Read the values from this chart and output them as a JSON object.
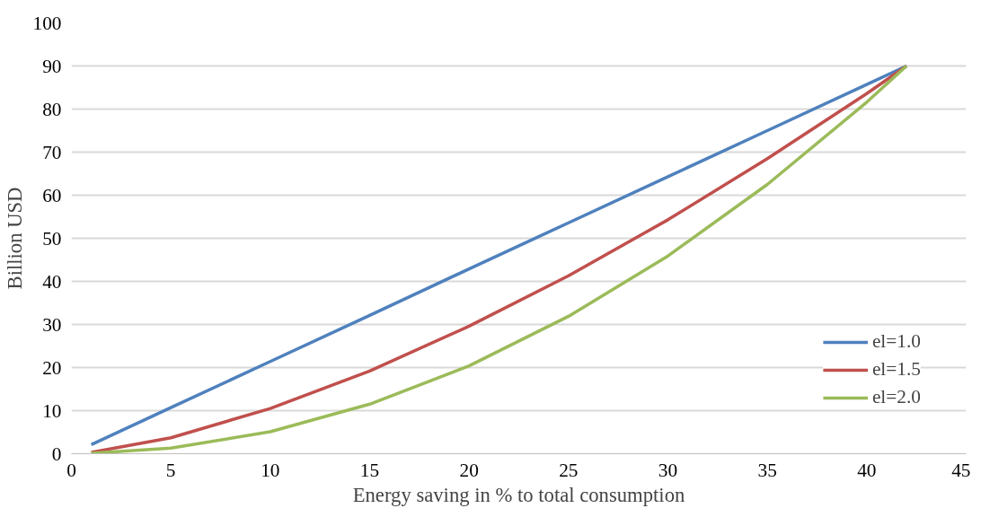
{
  "chart_data": {
    "type": "line",
    "xlabel": "Energy saving in % to total consumption",
    "ylabel": "Billion USD",
    "x": [
      1,
      5,
      10,
      15,
      20,
      25,
      30,
      35,
      40,
      42
    ],
    "series": [
      {
        "name": "el=1.0",
        "color": "#4f81bd",
        "values": [
          2.1,
          10.7,
          21.4,
          32.1,
          42.9,
          53.6,
          64.3,
          75.0,
          85.7,
          90
        ]
      },
      {
        "name": "el=1.5",
        "color": "#c0504d",
        "values": [
          0.3,
          3.7,
          10.5,
          19.2,
          29.6,
          41.3,
          54.3,
          68.5,
          83.6,
          90
        ]
      },
      {
        "name": "el=2.0",
        "color": "#9bbb59",
        "values": [
          0.1,
          1.3,
          5.1,
          11.5,
          20.4,
          31.9,
          45.9,
          62.5,
          81.6,
          90
        ]
      }
    ],
    "xlim": [
      0,
      45
    ],
    "xticks": [
      0,
      5,
      10,
      15,
      20,
      25,
      30,
      35,
      40,
      45
    ],
    "ylim": [
      0,
      100
    ],
    "yticks": [
      0,
      10,
      20,
      30,
      40,
      50,
      60,
      70,
      80,
      90,
      100
    ],
    "grid": "y",
    "legend": "bottom right",
    "marker": "none",
    "line_style": "solid"
  }
}
